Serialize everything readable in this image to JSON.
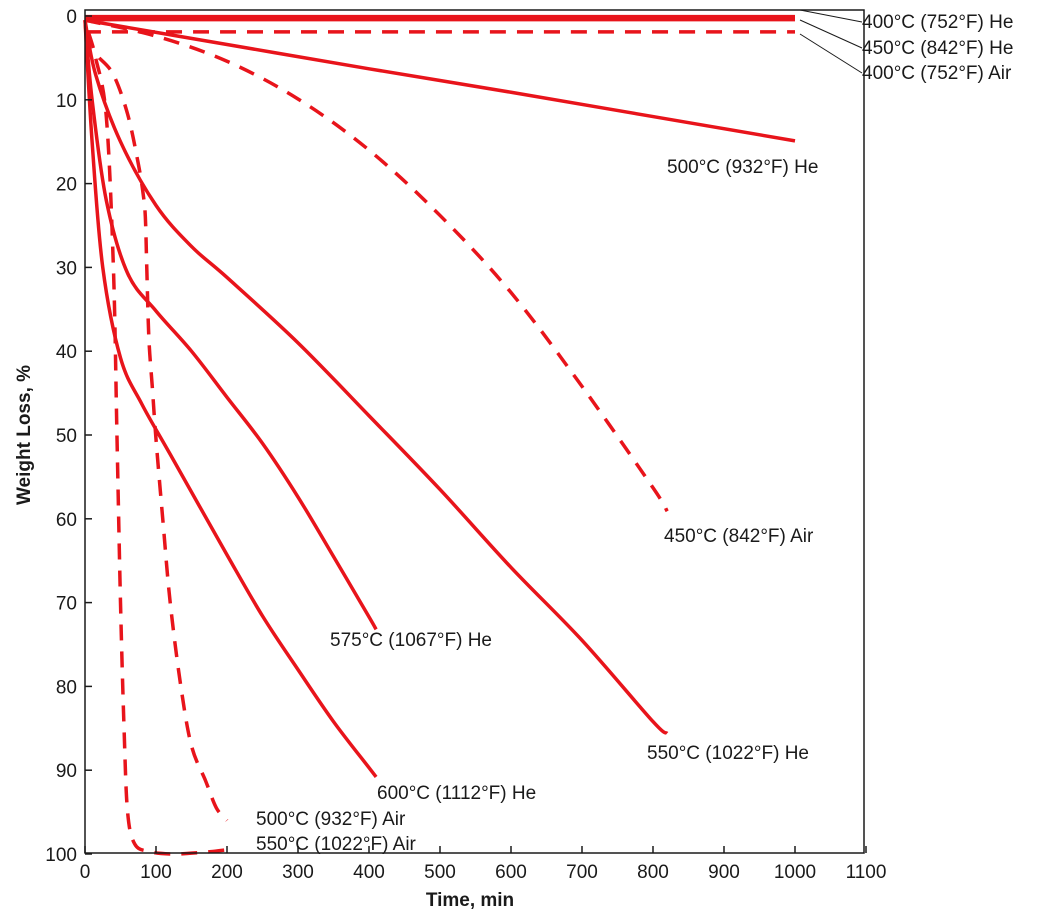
{
  "chart_data": {
    "type": "line",
    "title": "",
    "xlabel": "Time, min",
    "ylabel": "Weight Loss, %",
    "xlim": [
      0,
      1100
    ],
    "ylim": [
      0,
      100
    ],
    "y_inverted": true,
    "grid": false,
    "xticks": [
      "0",
      "100",
      "200",
      "300",
      "400",
      "500",
      "600",
      "700",
      "800",
      "900",
      "1000",
      "1100"
    ],
    "yticks": [
      "0",
      "10",
      "20",
      "30",
      "40",
      "50",
      "60",
      "70",
      "80",
      "90",
      "100"
    ],
    "line_color": "#e8141b",
    "series": [
      {
        "name": "400°C (752°F) He",
        "style": "solid",
        "x": [
          0,
          1000
        ],
        "y": [
          0.1,
          0.1
        ]
      },
      {
        "name": "450°C (842°F) He",
        "style": "solid",
        "x": [
          0,
          1000
        ],
        "y": [
          0.4,
          0.4
        ]
      },
      {
        "name": "400°C (752°F) Air",
        "style": "dashed",
        "x": [
          0,
          200,
          400,
          600,
          1000
        ],
        "y": [
          1.9,
          1.9,
          1.9,
          1.9,
          1.9
        ]
      },
      {
        "name": "500°C (932°F) He",
        "style": "solid",
        "x": [
          0,
          200,
          400,
          600,
          800,
          1000
        ],
        "y": [
          0.5,
          3.4,
          6.3,
          9.1,
          12.0,
          14.9
        ]
      },
      {
        "name": "450°C (842°F) Air",
        "style": "dashed",
        "x": [
          0,
          100,
          200,
          300,
          400,
          500,
          600,
          700,
          800,
          820
        ],
        "y": [
          0.5,
          2.4,
          5.4,
          9.9,
          16.0,
          23.8,
          33.0,
          44.2,
          56.3,
          59.1
        ]
      },
      {
        "name": "550°C (1022°F) He",
        "style": "solid",
        "x": [
          0,
          15,
          50,
          100,
          150,
          200,
          300,
          400,
          500,
          600,
          700,
          800,
          820
        ],
        "y": [
          0.5,
          7.0,
          15.0,
          22.6,
          27.5,
          31.2,
          39.0,
          47.7,
          56.5,
          65.8,
          74.5,
          84.2,
          85.6
        ]
      },
      {
        "name": "575°C (1067°F) He",
        "style": "solid",
        "x": [
          0,
          10,
          30,
          60,
          100,
          150,
          200,
          250,
          300,
          350,
          400,
          410
        ],
        "y": [
          0.5,
          10.0,
          22.0,
          30.7,
          35.2,
          40.0,
          45.5,
          51.0,
          57.4,
          64.5,
          71.7,
          73.2
        ]
      },
      {
        "name": "600°C (1112°F) He",
        "style": "solid",
        "x": [
          0,
          10,
          25,
          50,
          80,
          120,
          200,
          250,
          300,
          350,
          400,
          410
        ],
        "y": [
          0.5,
          15.0,
          30.0,
          40.8,
          46.3,
          52.3,
          64.3,
          71.6,
          78.0,
          84.2,
          89.7,
          90.8
        ]
      },
      {
        "name": "500°C (932°F) Air",
        "style": "dashed",
        "x": [
          20,
          40,
          60,
          75,
          82,
          85,
          87,
          90,
          95,
          100,
          110,
          120,
          135,
          150,
          170,
          185,
          200
        ],
        "y": [
          5.0,
          7.0,
          11.7,
          17.6,
          21.3,
          24.0,
          30.0,
          38.5,
          44.5,
          50.5,
          60.5,
          70.0,
          80.0,
          87.1,
          91.3,
          94.5,
          96.0
        ]
      },
      {
        "name": "550°C (1022°F) Air",
        "style": "dashed",
        "x": [
          5,
          15,
          30,
          40,
          45,
          50,
          55,
          60,
          70,
          90,
          120,
          150,
          180,
          200
        ],
        "y": [
          2.0,
          5.0,
          12.0,
          30.0,
          50.0,
          70.0,
          85.0,
          95.0,
          98.8,
          99.7,
          100.0,
          99.9,
          99.7,
          99.5
        ]
      }
    ]
  }
}
